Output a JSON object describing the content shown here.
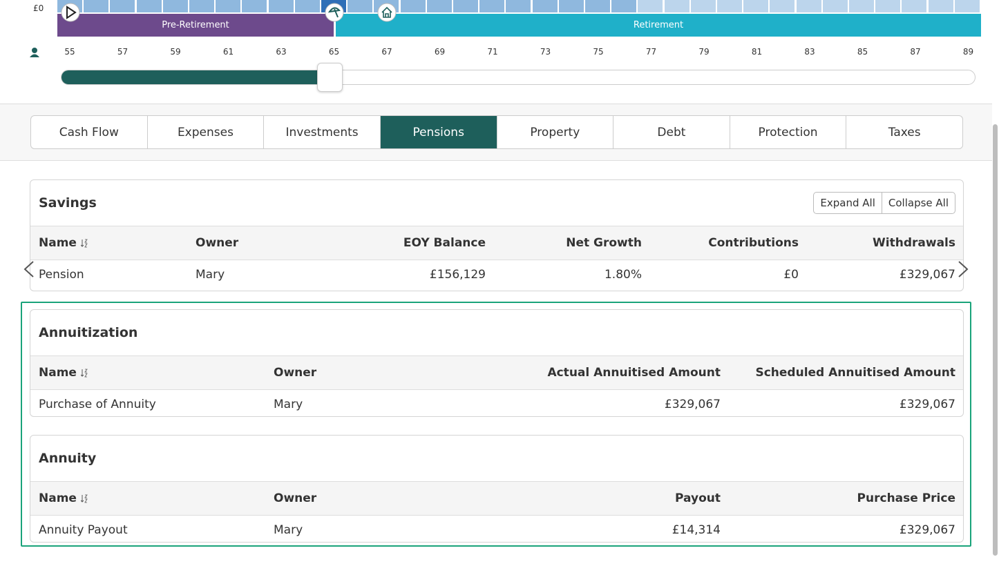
{
  "timeline": {
    "axis_label": "£0",
    "phases": [
      "Pre-Retirement",
      "Retirement"
    ],
    "ages": [
      55,
      57,
      59,
      61,
      63,
      65,
      67,
      69,
      71,
      73,
      75,
      77,
      79,
      81,
      83,
      85,
      87,
      89
    ]
  },
  "tabs": [
    "Cash Flow",
    "Expenses",
    "Investments",
    "Pensions",
    "Property",
    "Debt",
    "Protection",
    "Taxes"
  ],
  "savings": {
    "title": "Savings",
    "buttons": [
      "Expand All",
      "Collapse All"
    ],
    "columns": [
      "Name",
      "Owner",
      "EOY Balance",
      "Net Growth",
      "Contributions",
      "Withdrawals"
    ],
    "rows": [
      [
        "Pension",
        "Mary",
        "£156,129",
        "1.80%",
        "£0",
        "£329,067"
      ]
    ]
  },
  "annuitization": {
    "title": "Annuitization",
    "columns": [
      "Name",
      "Owner",
      "Actual Annuitised Amount",
      "Scheduled Annuitised Amount"
    ],
    "rows": [
      [
        "Purchase of Annuity",
        "Mary",
        "£329,067",
        "£329,067"
      ]
    ]
  },
  "annuity": {
    "title": "Annuity",
    "columns": [
      "Name",
      "Owner",
      "Payout",
      "Purchase Price"
    ],
    "rows": [
      [
        "Annuity Payout",
        "Mary",
        "£14,314",
        "£329,067"
      ]
    ]
  }
}
